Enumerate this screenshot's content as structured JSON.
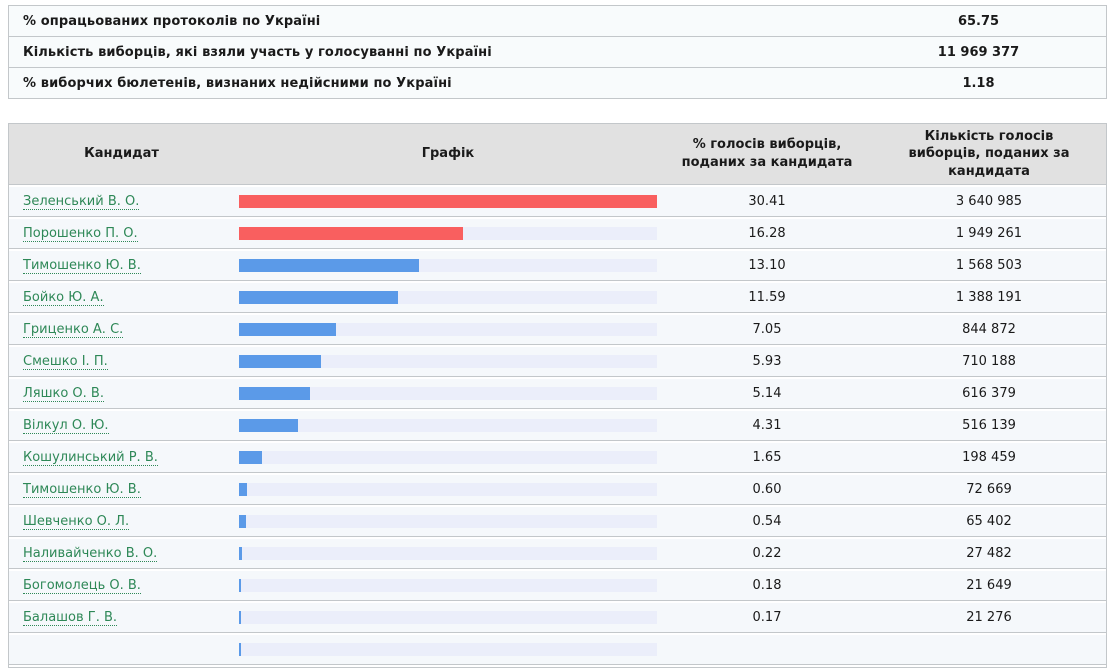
{
  "colors": {
    "bar_red": "#f95f5f",
    "bar_blue": "#5b9ae8",
    "bar_track": "#ebeefa",
    "candidate_link_green": "#2e8857",
    "header_bg": "#e1e1e1",
    "row_bg": "#f5f8fb",
    "summary_row_bg": "#f8fbfc",
    "border": "#c3c7ca"
  },
  "summary": {
    "rows": [
      {
        "label": "% опрацьованих протоколів по Україні",
        "value": "65.75"
      },
      {
        "label": "Кількість виборців, які взяли участь у голосуванні по Україні",
        "value": "11 969 377"
      },
      {
        "label": "% виборчих бюлетенів, визнаних недійсними по Україні",
        "value": "1.18"
      }
    ]
  },
  "results": {
    "columns": [
      "Кандидат",
      "Графік",
      "% голосів виборців, поданих за кандидата",
      "Кількість голосів виборців, поданих за кандидата"
    ],
    "max_percent": 30.41,
    "rows": [
      {
        "name": "Зеленський В. О.",
        "percent": "30.41",
        "votes": "3 640 985",
        "color": "red"
      },
      {
        "name": "Порошенко П. О.",
        "percent": "16.28",
        "votes": "1 949 261",
        "color": "red"
      },
      {
        "name": "Тимошенко Ю. В.",
        "percent": "13.10",
        "votes": "1 568 503",
        "color": "blue"
      },
      {
        "name": "Бойко Ю. А.",
        "percent": "11.59",
        "votes": "1 388 191",
        "color": "blue"
      },
      {
        "name": "Гриценко А. С.",
        "percent": "7.05",
        "votes": "844 872",
        "color": "blue"
      },
      {
        "name": "Смешко І. П.",
        "percent": "5.93",
        "votes": "710 188",
        "color": "blue"
      },
      {
        "name": "Ляшко О. В.",
        "percent": "5.14",
        "votes": "616 379",
        "color": "blue"
      },
      {
        "name": "Вілкул О. Ю.",
        "percent": "4.31",
        "votes": "516 139",
        "color": "blue"
      },
      {
        "name": "Кошулинський Р. В.",
        "percent": "1.65",
        "votes": "198 459",
        "color": "blue"
      },
      {
        "name": "Тимошенко Ю. В.",
        "percent": "0.60",
        "votes": "72 669",
        "color": "blue"
      },
      {
        "name": "Шевченко О. Л.",
        "percent": "0.54",
        "votes": "65 402",
        "color": "blue"
      },
      {
        "name": "Наливайченко В. О.",
        "percent": "0.22",
        "votes": "27 482",
        "color": "blue"
      },
      {
        "name": "Богомолець О. В.",
        "percent": "0.18",
        "votes": "21 649",
        "color": "blue"
      },
      {
        "name": "Балашов Г. В.",
        "percent": "0.17",
        "votes": "21 276",
        "color": "blue"
      }
    ],
    "partial_row": {
      "color": "blue",
      "bar_width_pct": 0.55
    }
  },
  "chart_data": {
    "type": "bar",
    "categories": [
      "Зеленський В. О.",
      "Порошенко П. О.",
      "Тимошенко Ю. В.",
      "Бойко Ю. А.",
      "Гриценко А. С.",
      "Смешко І. П.",
      "Ляшко О. В.",
      "Вілкул О. Ю.",
      "Кошулинський Р. В.",
      "Тимошенко Ю. В.",
      "Шевченко О. Л.",
      "Наливайченко В. О.",
      "Богомолець О. В.",
      "Балашов Г. В."
    ],
    "series": [
      {
        "name": "% голосів виборців, поданих за кандидата",
        "values": [
          30.41,
          16.28,
          13.1,
          11.59,
          7.05,
          5.93,
          5.14,
          4.31,
          1.65,
          0.6,
          0.54,
          0.22,
          0.18,
          0.17
        ]
      },
      {
        "name": "Кількість голосів виборців, поданих за кандидата",
        "values": [
          3640985,
          1949261,
          1568503,
          1388191,
          844872,
          710188,
          616379,
          516139,
          198459,
          72669,
          65402,
          27482,
          21649,
          21276
        ]
      }
    ],
    "xlabel": "Кандидат",
    "ylabel": "% голосів виборців, поданих за кандидата",
    "ylim": [
      0,
      30.41
    ],
    "legend_position": "none",
    "grid": false
  }
}
